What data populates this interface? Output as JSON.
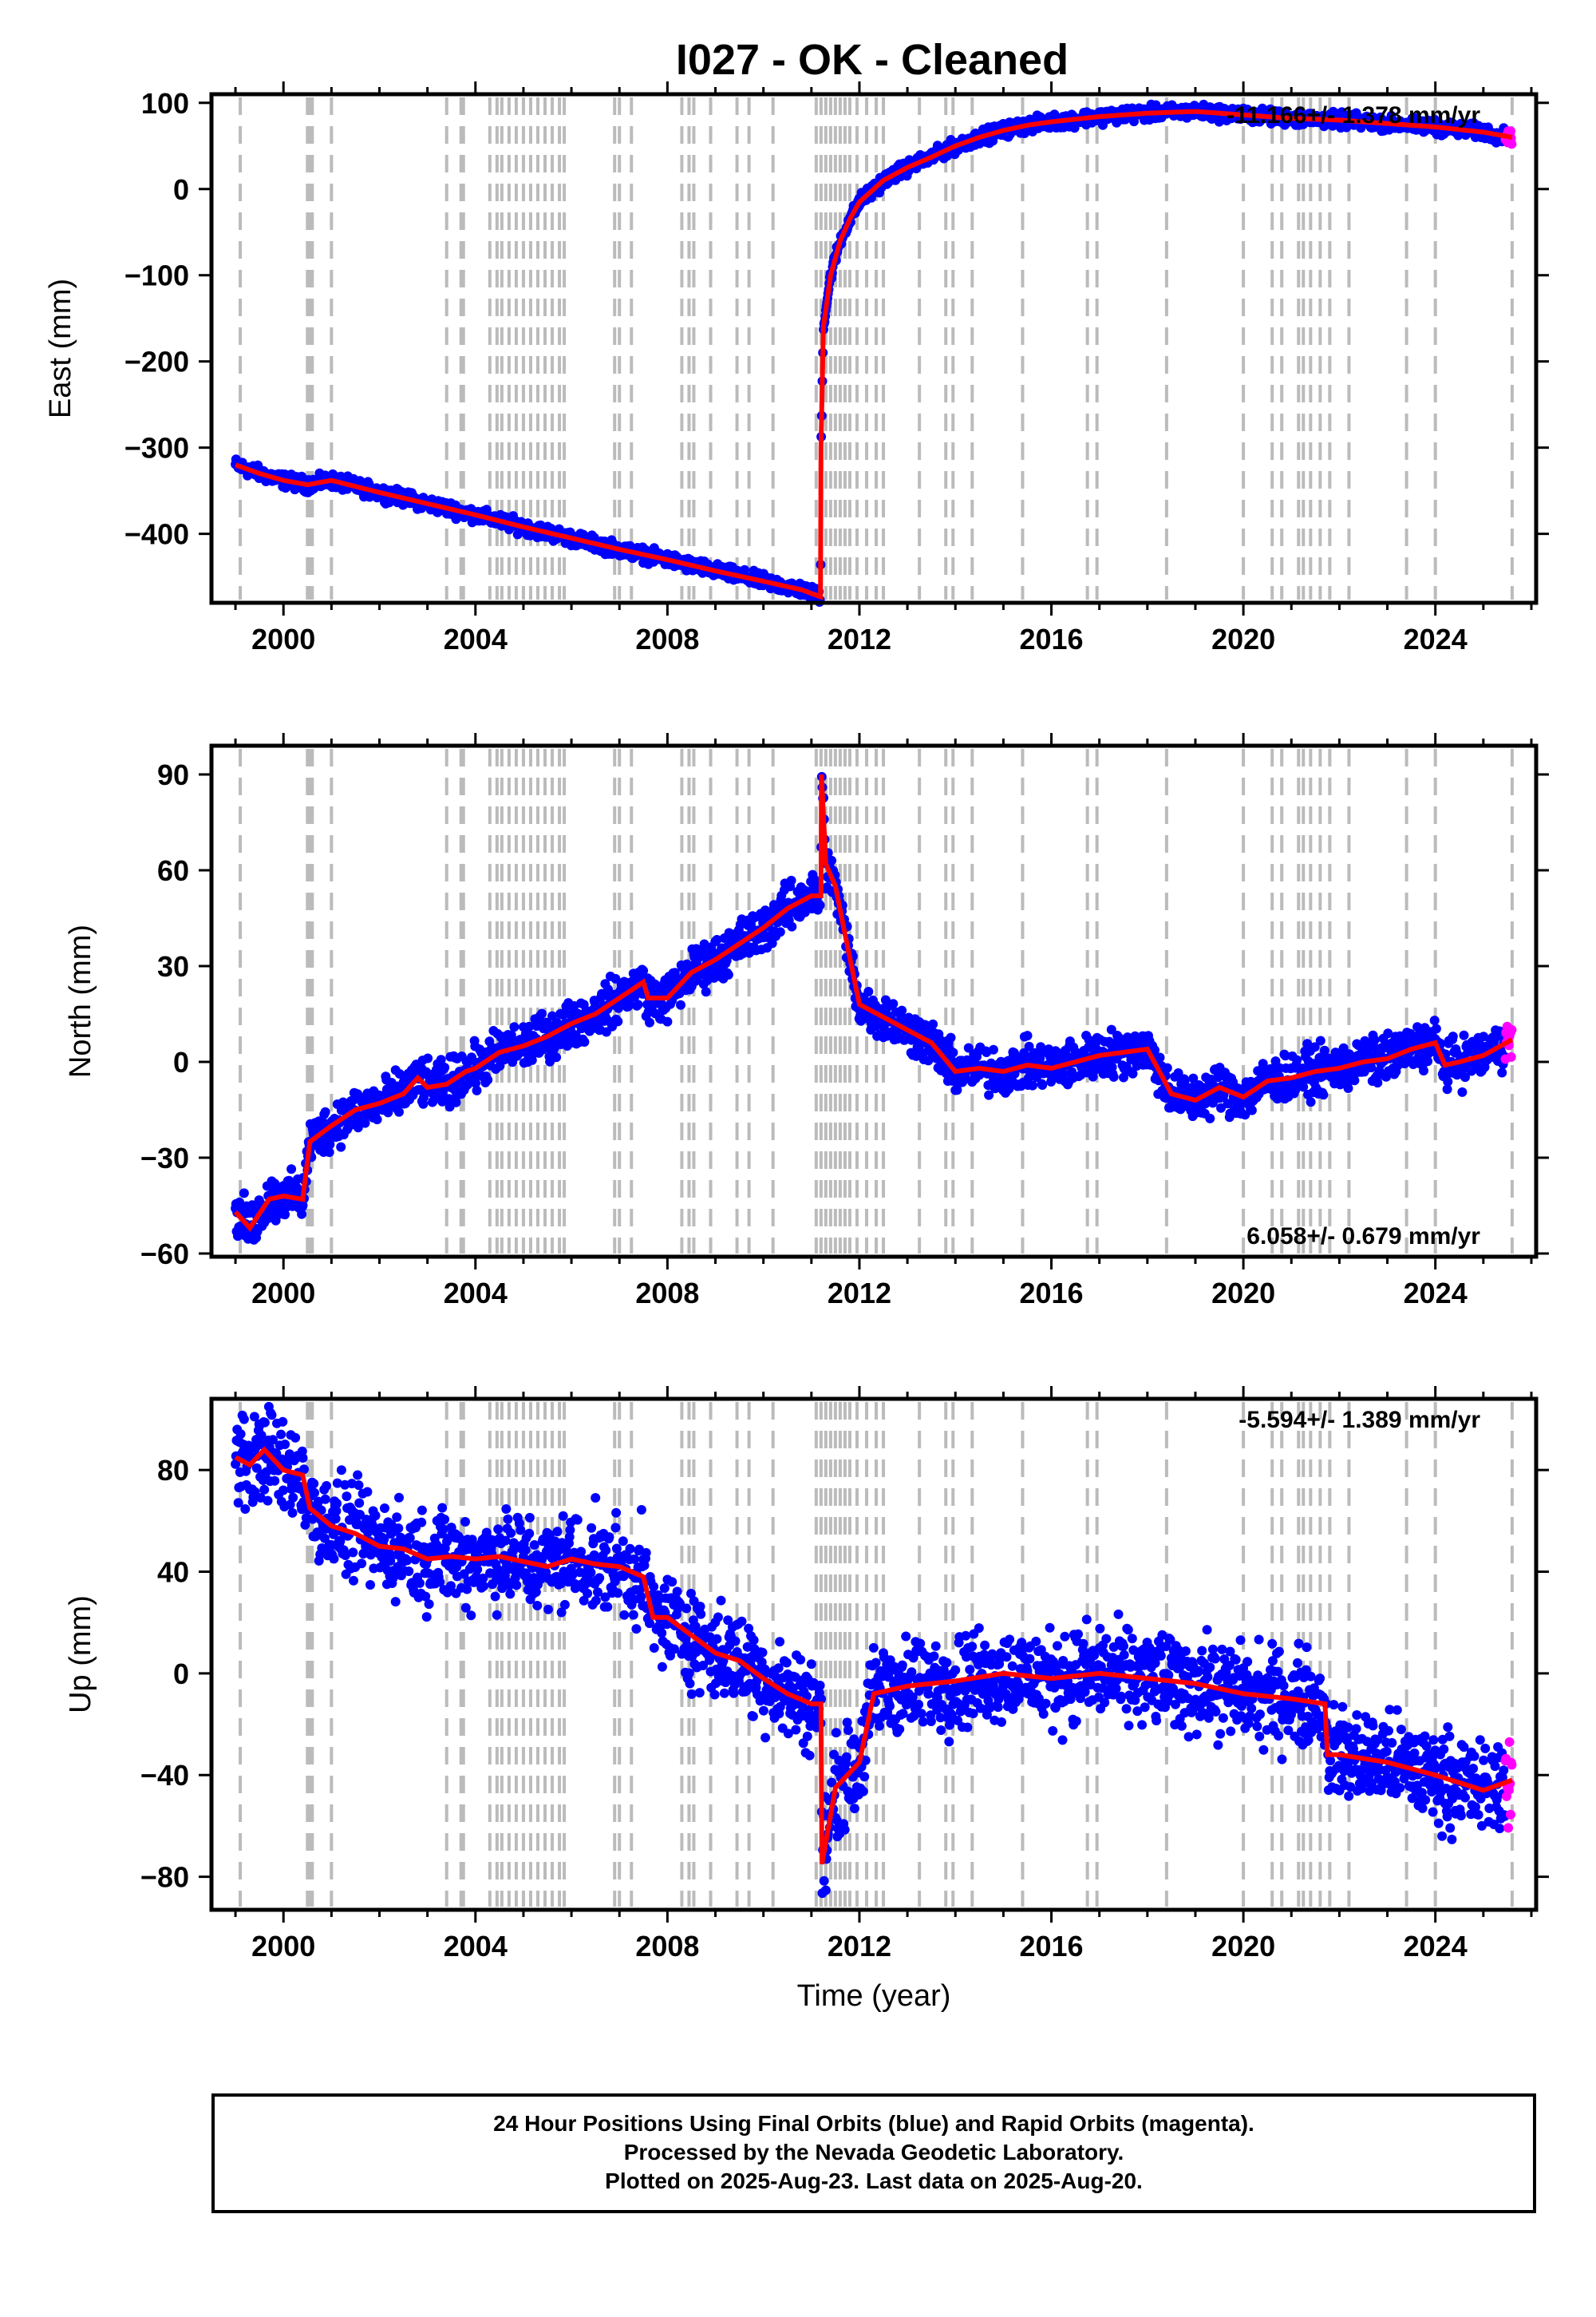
{
  "title": "I027  - OK - Cleaned",
  "colors": {
    "final": "#0000ff",
    "rapid": "#ff00ff",
    "model": "#ff0000",
    "event_line": "#bbbbbb"
  },
  "chart_data": [
    {
      "type": "scatter",
      "name": "east",
      "ylabel": "East (mm)",
      "xlabel": "",
      "xlim": [
        1998.5,
        2026.1
      ],
      "ylim": [
        -480,
        110
      ],
      "xticks": [
        2000,
        2004,
        2008,
        2012,
        2016,
        2020,
        2024
      ],
      "yticks": [
        100,
        0,
        -100,
        -200,
        -300,
        -400
      ],
      "rate": "-11.166+/- 1.378 mm/yr",
      "rate_position": "top-right",
      "points": [
        [
          1999.0,
          -320
        ],
        [
          1999.5,
          -330
        ],
        [
          2000.0,
          -338
        ],
        [
          2000.5,
          -343
        ],
        [
          2001.0,
          -338
        ],
        [
          2002.0,
          -352
        ],
        [
          2003.0,
          -365
        ],
        [
          2004.0,
          -378
        ],
        [
          2005.0,
          -392
        ],
        [
          2006.0,
          -405
        ],
        [
          2007.0,
          -418
        ],
        [
          2008.0,
          -430
        ],
        [
          2009.0,
          -443
        ],
        [
          2010.0,
          -455
        ],
        [
          2010.8,
          -465
        ],
        [
          2011.19,
          -473
        ],
        [
          2011.2,
          -300
        ],
        [
          2011.25,
          -160
        ],
        [
          2011.4,
          -100
        ],
        [
          2011.6,
          -60
        ],
        [
          2011.8,
          -35
        ],
        [
          2012.0,
          -15
        ],
        [
          2012.5,
          10
        ],
        [
          2013.0,
          25
        ],
        [
          2013.5,
          37
        ],
        [
          2014.0,
          50
        ],
        [
          2014.5,
          60
        ],
        [
          2015.0,
          68
        ],
        [
          2015.5,
          74
        ],
        [
          2016.0,
          78
        ],
        [
          2017.0,
          84
        ],
        [
          2018.0,
          88
        ],
        [
          2019.0,
          90
        ],
        [
          2020.0,
          86
        ],
        [
          2021.0,
          82
        ],
        [
          2022.0,
          80
        ],
        [
          2023.0,
          76
        ],
        [
          2024.0,
          72
        ],
        [
          2025.0,
          66
        ],
        [
          2025.6,
          60
        ]
      ]
    },
    {
      "type": "scatter",
      "name": "north",
      "ylabel": "North (mm)",
      "xlabel": "",
      "xlim": [
        1998.5,
        2026.1
      ],
      "ylim": [
        -61,
        99
      ],
      "xticks": [
        2000,
        2004,
        2008,
        2012,
        2016,
        2020,
        2024
      ],
      "yticks": [
        90,
        60,
        30,
        0,
        -30,
        -60
      ],
      "rate": "6.058+/- 0.679 mm/yr",
      "rate_position": "bottom-right",
      "points": [
        [
          1999.0,
          -47
        ],
        [
          1999.3,
          -52
        ],
        [
          1999.7,
          -43
        ],
        [
          2000.0,
          -42
        ],
        [
          2000.4,
          -43
        ],
        [
          2000.55,
          -25
        ],
        [
          2001.0,
          -20
        ],
        [
          2001.5,
          -15
        ],
        [
          2002.0,
          -13
        ],
        [
          2002.5,
          -10
        ],
        [
          2002.8,
          -5
        ],
        [
          2003.0,
          -8
        ],
        [
          2003.4,
          -7
        ],
        [
          2003.8,
          -3
        ],
        [
          2004.0,
          -2
        ],
        [
          2004.5,
          3
        ],
        [
          2005.0,
          5
        ],
        [
          2005.5,
          8
        ],
        [
          2006.0,
          12
        ],
        [
          2006.5,
          15
        ],
        [
          2007.0,
          20
        ],
        [
          2007.5,
          25
        ],
        [
          2007.6,
          20
        ],
        [
          2008.0,
          20
        ],
        [
          2008.5,
          28
        ],
        [
          2009.0,
          32
        ],
        [
          2009.5,
          37
        ],
        [
          2010.0,
          42
        ],
        [
          2010.5,
          48
        ],
        [
          2011.0,
          52
        ],
        [
          2011.2,
          52
        ],
        [
          2011.21,
          90
        ],
        [
          2011.3,
          62
        ],
        [
          2011.5,
          55
        ],
        [
          2011.7,
          40
        ],
        [
          2012.0,
          18
        ],
        [
          2012.5,
          14
        ],
        [
          2013.0,
          10
        ],
        [
          2013.5,
          6
        ],
        [
          2014.0,
          -3
        ],
        [
          2014.5,
          -2
        ],
        [
          2015.0,
          -3
        ],
        [
          2015.5,
          -1
        ],
        [
          2016.0,
          -2
        ],
        [
          2016.5,
          0
        ],
        [
          2017.0,
          2
        ],
        [
          2017.5,
          3
        ],
        [
          2018.0,
          4
        ],
        [
          2018.5,
          -10
        ],
        [
          2019.0,
          -12
        ],
        [
          2019.5,
          -8
        ],
        [
          2020.0,
          -11
        ],
        [
          2020.5,
          -6
        ],
        [
          2021.0,
          -5
        ],
        [
          2021.5,
          -3
        ],
        [
          2022.0,
          -2
        ],
        [
          2022.5,
          0
        ],
        [
          2023.0,
          1
        ],
        [
          2023.5,
          4
        ],
        [
          2024.0,
          6
        ],
        [
          2024.2,
          -1
        ],
        [
          2024.5,
          0
        ],
        [
          2025.0,
          2
        ],
        [
          2025.6,
          7
        ]
      ]
    },
    {
      "type": "scatter",
      "name": "up",
      "ylabel": "Up (mm)",
      "xlabel": "Time (year)",
      "xlim": [
        1998.5,
        2026.1
      ],
      "ylim": [
        -93,
        108
      ],
      "xticks": [
        2000,
        2004,
        2008,
        2012,
        2016,
        2020,
        2024
      ],
      "yticks": [
        80,
        40,
        0,
        -40,
        -80
      ],
      "rate": "-5.594+/- 1.389 mm/yr",
      "rate_position": "top-right",
      "points": [
        [
          1999.0,
          85
        ],
        [
          1999.3,
          82
        ],
        [
          1999.6,
          88
        ],
        [
          2000.0,
          80
        ],
        [
          2000.4,
          78
        ],
        [
          2000.55,
          65
        ],
        [
          2001.0,
          58
        ],
        [
          2001.5,
          55
        ],
        [
          2002.0,
          50
        ],
        [
          2002.5,
          49
        ],
        [
          2003.0,
          45
        ],
        [
          2003.5,
          46
        ],
        [
          2004.0,
          45
        ],
        [
          2004.5,
          46
        ],
        [
          2005.0,
          44
        ],
        [
          2005.5,
          42
        ],
        [
          2006.0,
          45
        ],
        [
          2006.5,
          43
        ],
        [
          2007.0,
          42
        ],
        [
          2007.5,
          38
        ],
        [
          2007.7,
          22
        ],
        [
          2008.0,
          22
        ],
        [
          2008.5,
          15
        ],
        [
          2009.0,
          8
        ],
        [
          2009.5,
          5
        ],
        [
          2010.0,
          -2
        ],
        [
          2010.5,
          -8
        ],
        [
          2011.0,
          -12
        ],
        [
          2011.2,
          -12
        ],
        [
          2011.22,
          -75
        ],
        [
          2011.5,
          -45
        ],
        [
          2012.0,
          -35
        ],
        [
          2012.3,
          -8
        ],
        [
          2013.0,
          -5
        ],
        [
          2014.0,
          -3
        ],
        [
          2015.0,
          0
        ],
        [
          2016.0,
          -2
        ],
        [
          2017.0,
          0
        ],
        [
          2018.0,
          -2
        ],
        [
          2019.0,
          -4
        ],
        [
          2020.0,
          -8
        ],
        [
          2021.0,
          -10
        ],
        [
          2021.7,
          -12
        ],
        [
          2021.75,
          -32
        ],
        [
          2022.0,
          -32
        ],
        [
          2023.0,
          -35
        ],
        [
          2024.0,
          -40
        ],
        [
          2025.0,
          -46
        ],
        [
          2025.6,
          -42
        ]
      ]
    }
  ],
  "event_lines": [
    1999.1,
    2000.5,
    2000.55,
    2000.6,
    2001.0,
    2003.4,
    2003.7,
    2003.75,
    2004.3,
    2004.45,
    2004.55,
    2004.7,
    2004.85,
    2005.0,
    2005.15,
    2005.3,
    2005.45,
    2005.6,
    2005.75,
    2005.85,
    2006.9,
    2007.0,
    2007.25,
    2008.3,
    2008.45,
    2008.55,
    2008.9,
    2009.45,
    2009.7,
    2010.2,
    2011.1,
    2011.2,
    2011.3,
    2011.4,
    2011.5,
    2011.6,
    2011.7,
    2011.8,
    2011.95,
    2012.15,
    2012.35,
    2012.5,
    2013.25,
    2013.8,
    2013.95,
    2014.35,
    2015.4,
    2016.75,
    2016.95,
    2018.4,
    2020.0,
    2020.6,
    2020.8,
    2021.15,
    2021.25,
    2021.4,
    2021.6,
    2021.8,
    2022.2,
    2023.4,
    2024.0,
    2025.6
  ],
  "footer": {
    "line1": "24 Hour Positions Using Final Orbits (blue) and Rapid Orbits (magenta).",
    "line2": "Processed by the Nevada Geodetic Laboratory.",
    "line3": "Plotted on 2025-Aug-23. Last data on 2025-Aug-20."
  }
}
